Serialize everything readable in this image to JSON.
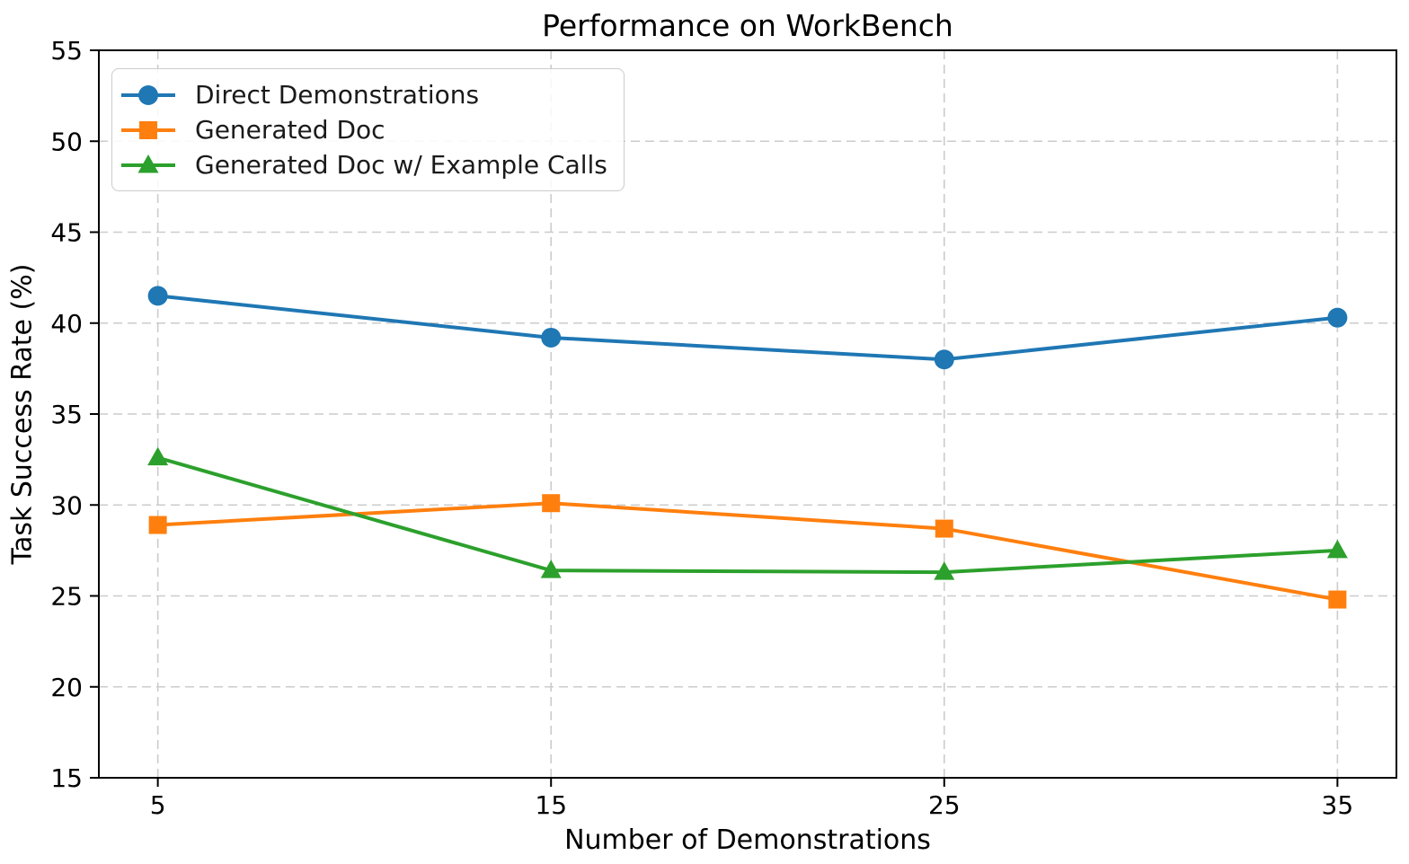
{
  "figure": {
    "title": "Performance on WorkBench"
  },
  "chart_data": {
    "type": "line",
    "title": "Performance on WorkBench",
    "xlabel": "Number of Demonstrations",
    "ylabel": "Task Success Rate (%)",
    "x": [
      5,
      15,
      25,
      35
    ],
    "series": [
      {
        "name": "Direct Demonstrations",
        "color": "#1f77b4",
        "marker": "circle",
        "values": [
          41.5,
          39.2,
          38.0,
          40.3
        ]
      },
      {
        "name": "Generated Doc",
        "color": "#ff7f0e",
        "marker": "square",
        "values": [
          28.9,
          30.1,
          28.7,
          24.8
        ]
      },
      {
        "name": "Generated Doc w/ Example Calls",
        "color": "#2ca02c",
        "marker": "triangle",
        "values": [
          32.6,
          26.4,
          26.3,
          27.5
        ]
      }
    ],
    "xlim": [
      3.5,
      36.5
    ],
    "ylim": [
      15,
      55
    ],
    "xticks": [
      5,
      15,
      25,
      35
    ],
    "yticks": [
      15,
      20,
      25,
      30,
      35,
      40,
      45,
      50,
      55
    ],
    "grid": true,
    "grid_style": "dashed",
    "grid_color": "#cccccc",
    "axis_color": "#000000",
    "tick_label_color": "#000000",
    "legend_position": "upper-left"
  }
}
